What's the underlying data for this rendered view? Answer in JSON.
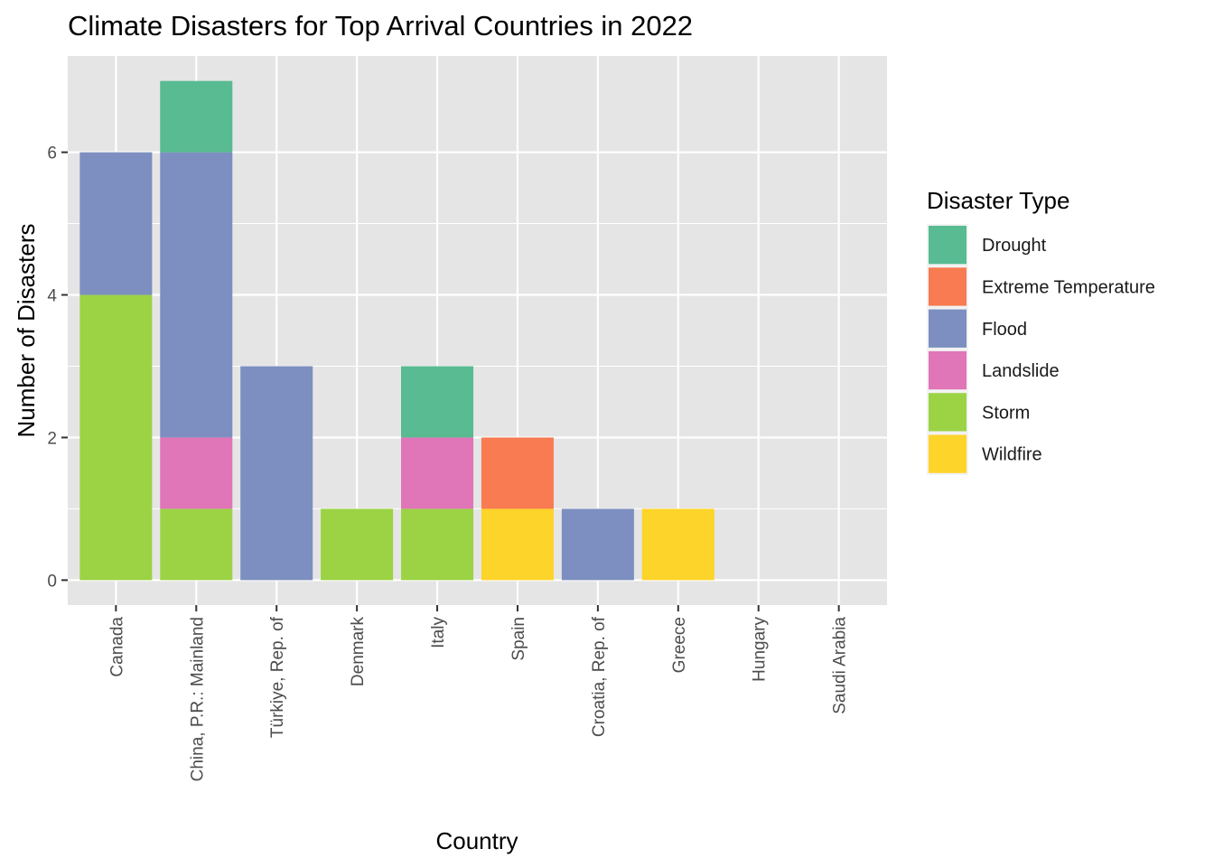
{
  "chart_data": {
    "type": "bar",
    "stacked": true,
    "title": "Climate Disasters for Top Arrival Countries in 2022",
    "xlabel": "Country",
    "ylabel": "Number of Disasters",
    "ylim": [
      -0.35,
      7.35
    ],
    "yticks": [
      0,
      2,
      4,
      6
    ],
    "grid": true,
    "legend_position": "right",
    "legend_title": "Disaster Type",
    "categories": [
      "Canada",
      "China, P.R.: Mainland",
      "Türkiye, Rep. of",
      "Denmark",
      "Italy",
      "Spain",
      "Croatia, Rep. of",
      "Greece",
      "Hungary",
      "Saudi Arabia"
    ],
    "series": [
      {
        "name": "Drought",
        "color": "#58BB91",
        "values": [
          0,
          1,
          0,
          0,
          1,
          0,
          0,
          0,
          0,
          0
        ]
      },
      {
        "name": "Extreme Temperature",
        "color": "#F87B52",
        "values": [
          0,
          0,
          0,
          0,
          0,
          1,
          0,
          0,
          0,
          0
        ]
      },
      {
        "name": "Flood",
        "color": "#7D8FC0",
        "values": [
          2,
          4,
          3,
          0,
          0,
          0,
          1,
          0,
          0,
          0
        ]
      },
      {
        "name": "Landslide",
        "color": "#E075B8",
        "values": [
          0,
          1,
          0,
          0,
          1,
          0,
          0,
          0,
          0,
          0
        ]
      },
      {
        "name": "Storm",
        "color": "#9BD345",
        "values": [
          4,
          1,
          0,
          1,
          1,
          0,
          0,
          0,
          0,
          0
        ]
      },
      {
        "name": "Wildfire",
        "color": "#FDD42A",
        "values": [
          0,
          0,
          0,
          0,
          0,
          1,
          0,
          1,
          0,
          0
        ]
      }
    ],
    "stack_order_bottom_to_top": [
      "Wildfire",
      "Storm",
      "Landslide",
      "Flood",
      "Extreme Temperature",
      "Drought"
    ],
    "panel_background": "#E5E5E5",
    "grid_color": "#FFFFFF"
  }
}
